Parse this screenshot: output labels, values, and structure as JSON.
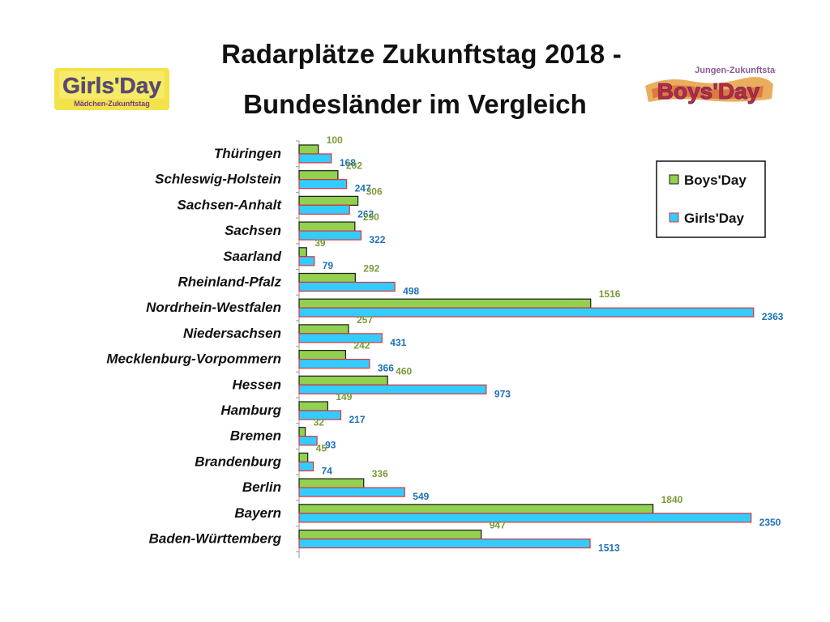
{
  "title_line1": "Radarplätze Zukunftstag 2018 -",
  "title_line2": "Bundesländer im Vergleich",
  "logos": {
    "girls_main": "Girls'Day",
    "girls_sub": "Mädchen-Zukunftstag",
    "boys_top": "Jungen-Zukunftstag",
    "boys_main": "Boys'Day"
  },
  "colors": {
    "boys_fill": "#92D050",
    "boys_stroke": "#1a1a1a",
    "girls_fill": "#33CCFF",
    "girls_stroke": "#E0303A",
    "boys_label": "#7a9a3a",
    "girls_label": "#1d6fb8"
  },
  "chart_data": {
    "type": "bar",
    "orientation": "horizontal",
    "title": "Radarplätze Zukunftstag 2018 - Bundesländer im Vergleich",
    "categories": [
      "Thüringen",
      "Schleswig-Holstein",
      "Sachsen-Anhalt",
      "Sachsen",
      "Saarland",
      "Rheinland-Pfalz",
      "Nordrhein-Westfalen",
      "Niedersachsen",
      "Mecklenburg-Vorpommern",
      "Hessen",
      "Hamburg",
      "Bremen",
      "Brandenburg",
      "Berlin",
      "Bayern",
      "Baden-Württemberg"
    ],
    "series": [
      {
        "name": "Boys'Day",
        "values": [
          100,
          202,
          306,
          290,
          39,
          292,
          1516,
          257,
          242,
          460,
          149,
          32,
          45,
          336,
          1840,
          947
        ]
      },
      {
        "name": "Girls'Day",
        "values": [
          168,
          247,
          262,
          322,
          79,
          498,
          2363,
          431,
          366,
          973,
          217,
          93,
          74,
          549,
          2350,
          1513
        ]
      }
    ],
    "xlim": [
      0,
      2400
    ],
    "legend_position": "top-right",
    "data_labels": true,
    "grid": false
  }
}
